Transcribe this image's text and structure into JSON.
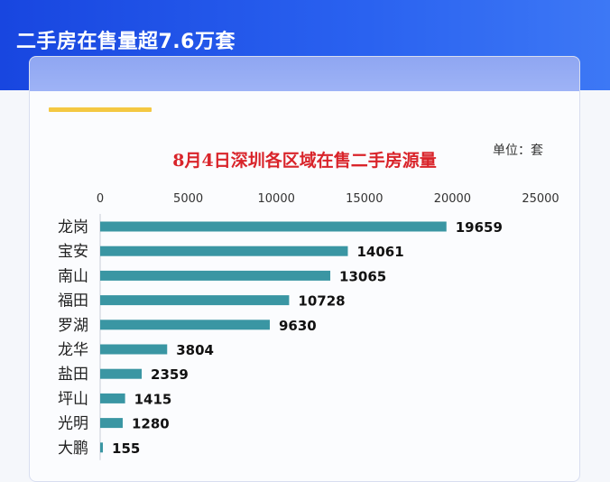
{
  "header": {
    "title": "二手房在售量超7.6万套"
  },
  "unit": "单位：套",
  "chart_data": {
    "type": "bar",
    "orientation": "horizontal",
    "title": "8月4日深圳各区域在售二手房源量",
    "categories": [
      "龙岗",
      "宝安",
      "南山",
      "福田",
      "罗湖",
      "龙华",
      "盐田",
      "坪山",
      "光明",
      "大鹏"
    ],
    "values": [
      19659,
      14061,
      13065,
      10728,
      9630,
      3804,
      2359,
      1415,
      1280,
      155
    ],
    "xlim": [
      0,
      25000
    ],
    "ticks": [
      0,
      5000,
      10000,
      15000,
      20000,
      25000
    ],
    "tick_position": "top",
    "grid": false,
    "bar_color": "#3a96a3"
  }
}
